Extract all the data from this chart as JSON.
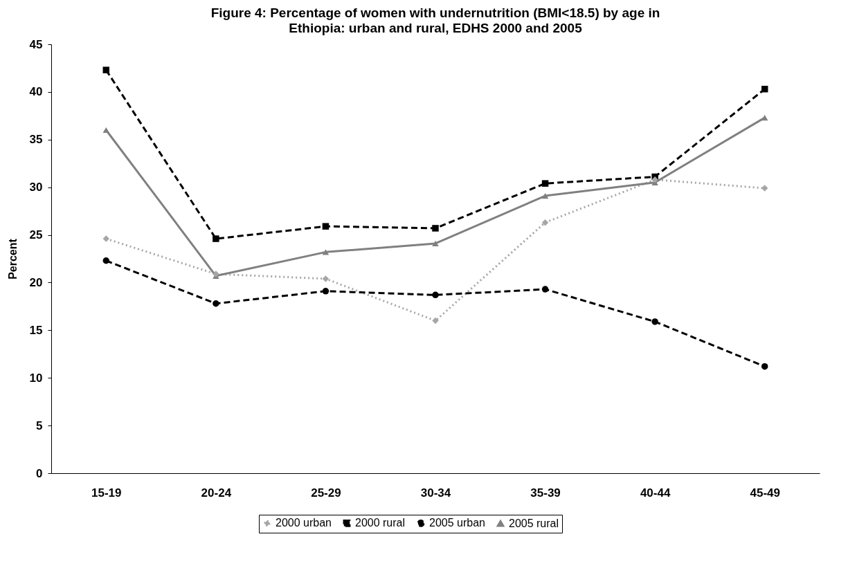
{
  "chart_data": {
    "type": "line",
    "title": "Figure 4: Percentage of women with undernutrition (BMI<18.5) by age in Ethiopia: urban and rural, EDHS 2000 and 2005",
    "ylabel": "Percent",
    "categories": [
      "15-19",
      "20-24",
      "25-29",
      "30-34",
      "35-39",
      "40-44",
      "45-49"
    ],
    "series": [
      {
        "name": "2000 urban",
        "color": "#a6a6a6",
        "line_style": "dotted",
        "marker": "diamond",
        "values": [
          24.6,
          20.9,
          20.4,
          16.0,
          26.3,
          30.8,
          29.9
        ]
      },
      {
        "name": "2000 rural",
        "color": "#000000",
        "line_style": "dashed",
        "marker": "square",
        "values": [
          42.3,
          24.6,
          25.9,
          25.7,
          30.4,
          31.1,
          40.3
        ]
      },
      {
        "name": "2005 urban",
        "color": "#000000",
        "line_style": "dashed",
        "marker": "circle",
        "values": [
          22.3,
          17.8,
          19.1,
          18.7,
          19.3,
          15.9,
          11.2
        ]
      },
      {
        "name": "2005 rural",
        "color": "#808080",
        "line_style": "solid",
        "marker": "triangle",
        "values": [
          36.0,
          20.7,
          23.2,
          24.1,
          29.1,
          30.5,
          37.3
        ]
      }
    ],
    "ylim": [
      0,
      45
    ],
    "yticks": [
      0,
      5,
      10,
      15,
      20,
      25,
      30,
      35,
      40,
      45
    ],
    "grid": false,
    "legend": "bottom"
  }
}
